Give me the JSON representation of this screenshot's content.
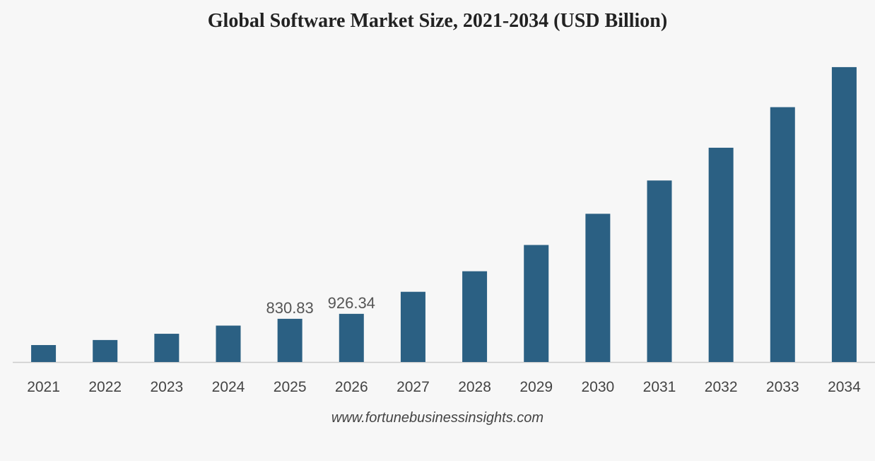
{
  "chart_data": {
    "type": "bar",
    "title": "Global Software Market Size, 2021-2034 (USD Billion)",
    "xlabel": "",
    "ylabel": "",
    "categories": [
      "2021",
      "2022",
      "2023",
      "2024",
      "2025",
      "2026",
      "2027",
      "2028",
      "2029",
      "2030",
      "2031",
      "2032",
      "2033",
      "2034"
    ],
    "values": [
      326,
      423,
      543,
      700,
      830.83,
      926.34,
      1350,
      1745,
      2250,
      2850,
      3490,
      4120,
      4900,
      5670
    ],
    "data_labels": [
      {
        "category": "2025",
        "text": "830.83"
      },
      {
        "category": "2026",
        "text": "926.34"
      }
    ],
    "ylim": [
      0,
      5900
    ],
    "grid": false,
    "legend": "none",
    "bar_color": "#2b6083",
    "axis_color": "#cccccc"
  },
  "source": "www.fortunebusinessinsights.com"
}
